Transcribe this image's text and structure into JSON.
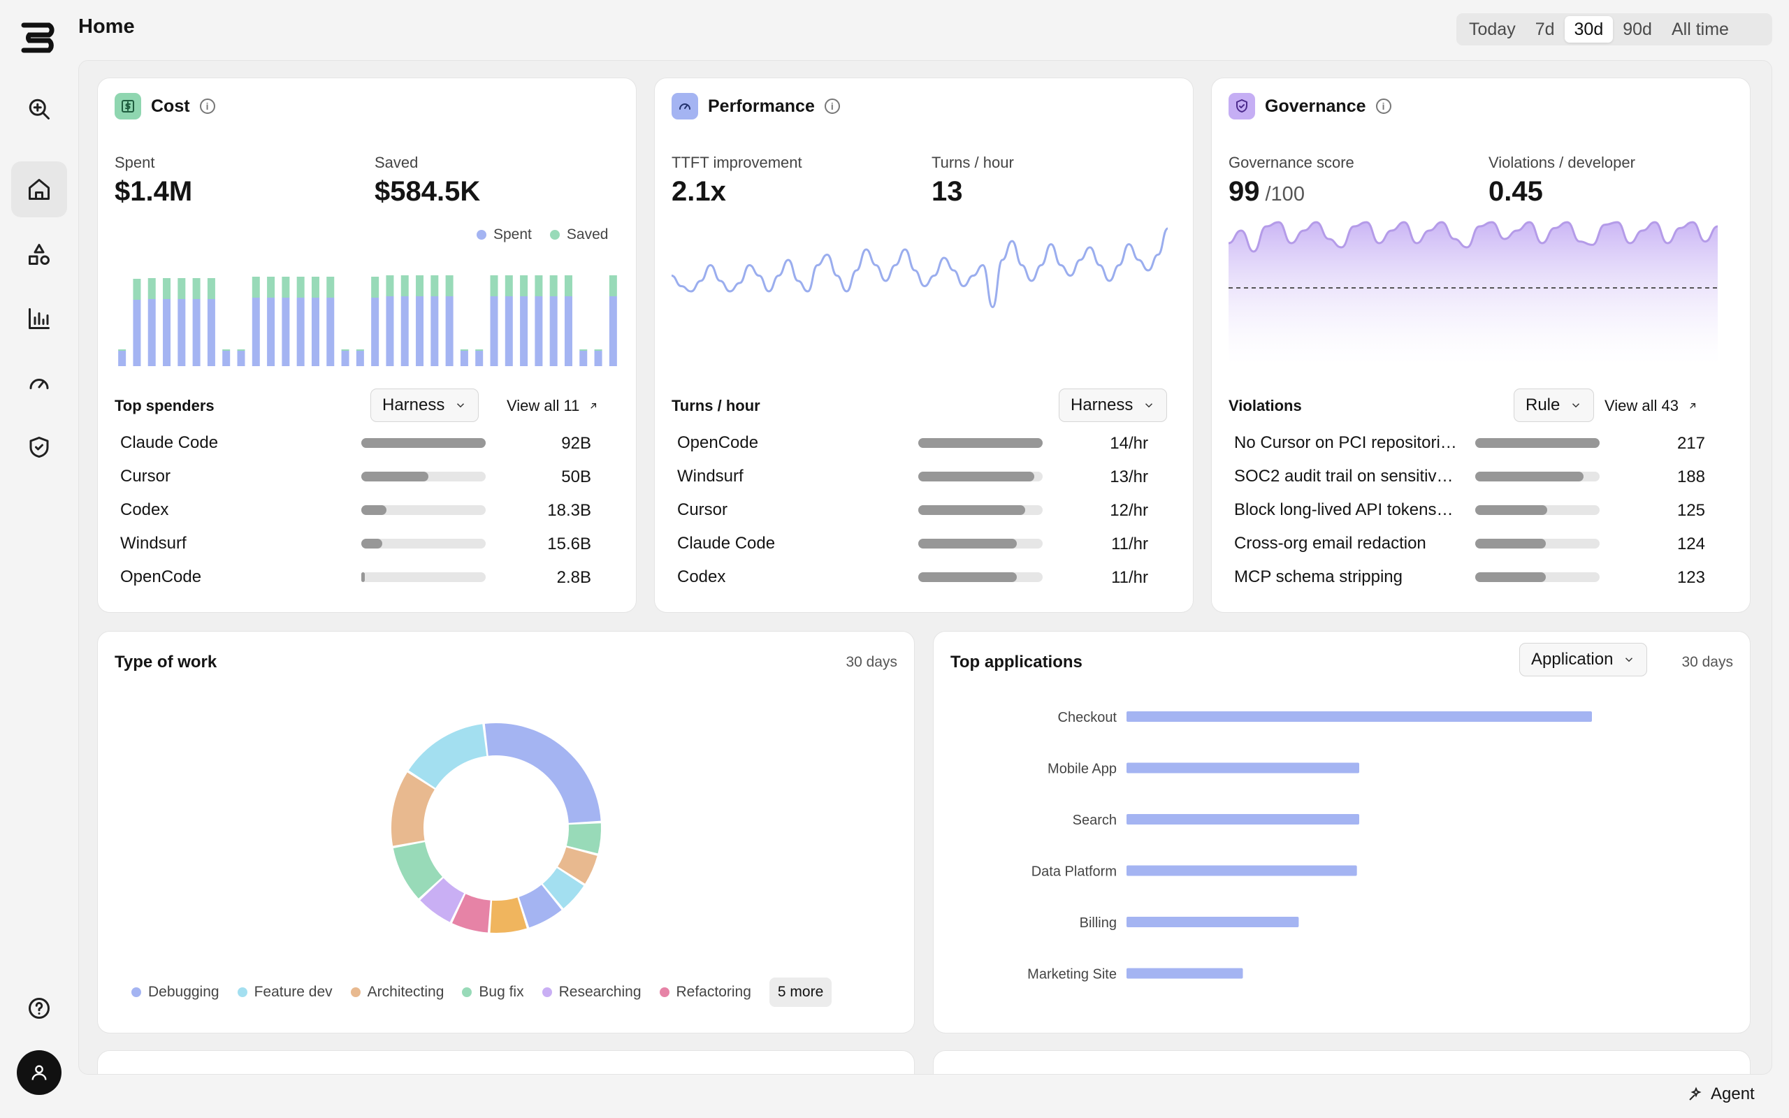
{
  "page": {
    "title": "Home"
  },
  "time_range": {
    "options": [
      "Today",
      "7d",
      "30d",
      "90d",
      "All time"
    ],
    "selected": "30d"
  },
  "colors": {
    "spent": "#a4b4f2",
    "saved": "#98dab8",
    "accent": "#a4b4f2",
    "governance": "#c5aef4"
  },
  "sidebar": {
    "items": [
      {
        "name": "search-icon"
      },
      {
        "name": "home-icon",
        "active": true
      },
      {
        "name": "shapes-icon"
      },
      {
        "name": "bar-chart-icon"
      },
      {
        "name": "gauge-icon"
      },
      {
        "name": "shield-icon"
      }
    ],
    "bottom": [
      {
        "name": "help-icon"
      },
      {
        "name": "user-icon"
      }
    ]
  },
  "cost": {
    "title": "Cost",
    "spent_label": "Spent",
    "spent_value": "$1.4M",
    "saved_label": "Saved",
    "saved_value": "$584.5K",
    "legend": [
      "Spent",
      "Saved"
    ],
    "section_title": "Top spenders",
    "dropdown": "Harness",
    "view_all": "View all 11",
    "rows": [
      {
        "name": "Claude Code",
        "value": "92B",
        "fraction": 1.0
      },
      {
        "name": "Cursor",
        "value": "50B",
        "fraction": 0.54
      },
      {
        "name": "Codex",
        "value": "18.3B",
        "fraction": 0.2
      },
      {
        "name": "Windsurf",
        "value": "15.6B",
        "fraction": 0.17
      },
      {
        "name": "OpenCode",
        "value": "2.8B",
        "fraction": 0.03
      }
    ]
  },
  "performance": {
    "title": "Performance",
    "metric1_label": "TTFT improvement",
    "metric1_value": "2.1x",
    "metric2_label": "Turns / hour",
    "metric2_value": "13",
    "section_title": "Turns / hour",
    "dropdown": "Harness",
    "rows": [
      {
        "name": "OpenCode",
        "value": "14/hr",
        "fraction": 1.0
      },
      {
        "name": "Windsurf",
        "value": "13/hr",
        "fraction": 0.93
      },
      {
        "name": "Cursor",
        "value": "12/hr",
        "fraction": 0.86
      },
      {
        "name": "Claude Code",
        "value": "11/hr",
        "fraction": 0.79
      },
      {
        "name": "Codex",
        "value": "11/hr",
        "fraction": 0.79
      }
    ]
  },
  "governance": {
    "title": "Governance",
    "metric1_label": "Governance score",
    "metric1_value": "99",
    "metric1_suffix": "/100",
    "metric2_label": "Violations / developer",
    "metric2_value": "0.45",
    "section_title": "Violations",
    "dropdown": "Rule",
    "view_all": "View all 43",
    "rows": [
      {
        "name": "No Cursor on PCI repositori…",
        "value": "217",
        "fraction": 1.0
      },
      {
        "name": "SOC2 audit trail on sensitiv…",
        "value": "188",
        "fraction": 0.87
      },
      {
        "name": "Block long-lived API tokens…",
        "value": "125",
        "fraction": 0.58
      },
      {
        "name": "Cross-org email redaction",
        "value": "124",
        "fraction": 0.57
      },
      {
        "name": "MCP schema stripping",
        "value": "123",
        "fraction": 0.57
      }
    ]
  },
  "type_of_work": {
    "title": "Type of work",
    "period": "30 days",
    "legend": [
      {
        "label": "Debugging",
        "color": "#a4b4f2"
      },
      {
        "label": "Feature dev",
        "color": "#a3dff0"
      },
      {
        "label": "Architecting",
        "color": "#e8b98f"
      },
      {
        "label": "Bug fix",
        "color": "#98dab8"
      },
      {
        "label": "Researching",
        "color": "#c9aff4"
      },
      {
        "label": "Refactoring",
        "color": "#e683a6"
      }
    ],
    "more_label": "5 more"
  },
  "top_applications": {
    "title": "Top applications",
    "dropdown": "Application",
    "period": "30 days"
  },
  "agent": {
    "label": "Agent"
  },
  "chart_data": [
    {
      "type": "bar",
      "stacked": true,
      "series": [
        {
          "name": "Spent",
          "values": [
            0.22,
            0.95,
            0.96,
            0.96,
            0.96,
            0.96,
            0.96,
            0.22,
            0.22,
            0.98,
            0.98,
            0.98,
            0.98,
            0.98,
            0.98,
            0.22,
            0.22,
            0.98,
            1.0,
            1.0,
            1.0,
            1.0,
            1.0,
            0.22,
            0.22,
            1.0,
            1.0,
            1.0,
            1.0,
            1.0,
            1.0,
            0.22,
            0.22,
            1.0
          ]
        },
        {
          "name": "Saved",
          "values": [
            0.02,
            0.3,
            0.3,
            0.3,
            0.3,
            0.3,
            0.3,
            0.02,
            0.02,
            0.3,
            0.3,
            0.3,
            0.3,
            0.3,
            0.3,
            0.02,
            0.02,
            0.3,
            0.3,
            0.3,
            0.3,
            0.3,
            0.3,
            0.02,
            0.02,
            0.3,
            0.3,
            0.3,
            0.3,
            0.3,
            0.3,
            0.02,
            0.02,
            0.3
          ]
        }
      ],
      "legend": "top-right"
    },
    {
      "type": "line",
      "series": [
        {
          "name": "Turns / hour",
          "values": [
            0.45,
            0.35,
            0.3,
            0.4,
            0.55,
            0.4,
            0.3,
            0.38,
            0.55,
            0.45,
            0.3,
            0.45,
            0.6,
            0.4,
            0.3,
            0.55,
            0.65,
            0.45,
            0.3,
            0.5,
            0.7,
            0.55,
            0.4,
            0.55,
            0.7,
            0.5,
            0.35,
            0.45,
            0.62,
            0.5,
            0.35,
            0.45,
            0.55,
            0.15,
            0.6,
            0.78,
            0.55,
            0.4,
            0.55,
            0.75,
            0.55,
            0.45,
            0.6,
            0.72,
            0.55,
            0.4,
            0.55,
            0.75,
            0.6,
            0.5,
            0.65,
            0.9
          ]
        }
      ]
    },
    {
      "type": "area",
      "series": [
        {
          "name": "Governance score",
          "values": [
            0.7,
            0.85,
            0.6,
            0.9,
            0.95,
            0.7,
            0.85,
            0.95,
            0.75,
            0.65,
            0.9,
            0.95,
            0.7,
            0.85,
            0.95,
            0.7,
            0.85,
            0.95,
            0.75,
            0.65,
            0.9,
            0.95,
            0.75,
            0.85,
            0.95,
            0.7,
            0.88,
            0.95,
            0.72,
            0.68,
            0.92,
            0.95,
            0.7,
            0.85,
            0.95,
            0.7,
            0.88,
            0.95,
            0.72,
            0.9
          ]
        }
      ],
      "reference_line": 0.5
    },
    {
      "type": "pie",
      "donut": true,
      "slices": [
        {
          "label": "Debugging",
          "value": 26,
          "color": "#a4b4f2"
        },
        {
          "label": "",
          "value": 5,
          "color": "#98dab8"
        },
        {
          "label": "",
          "value": 5,
          "color": "#e8b98f"
        },
        {
          "label": "",
          "value": 5,
          "color": "#a3dff0"
        },
        {
          "label": "",
          "value": 6,
          "color": "#a4b4f2"
        },
        {
          "label": "",
          "value": 6,
          "color": "#f0b55e"
        },
        {
          "label": "Refactoring",
          "value": 6,
          "color": "#e683a6"
        },
        {
          "label": "Researching",
          "value": 6,
          "color": "#c9aff4"
        },
        {
          "label": "Bug fix",
          "value": 9,
          "color": "#98dab8"
        },
        {
          "label": "Architecting",
          "value": 12,
          "color": "#e8b98f"
        },
        {
          "label": "Feature dev",
          "value": 14,
          "color": "#a3dff0"
        }
      ]
    },
    {
      "type": "bar",
      "orientation": "horizontal",
      "categories": [
        "Checkout",
        "Mobile App",
        "Search",
        "Data Platform",
        "Billing",
        "Marketing Site"
      ],
      "values": [
        100,
        50,
        50,
        49.5,
        37,
        25
      ]
    }
  ]
}
